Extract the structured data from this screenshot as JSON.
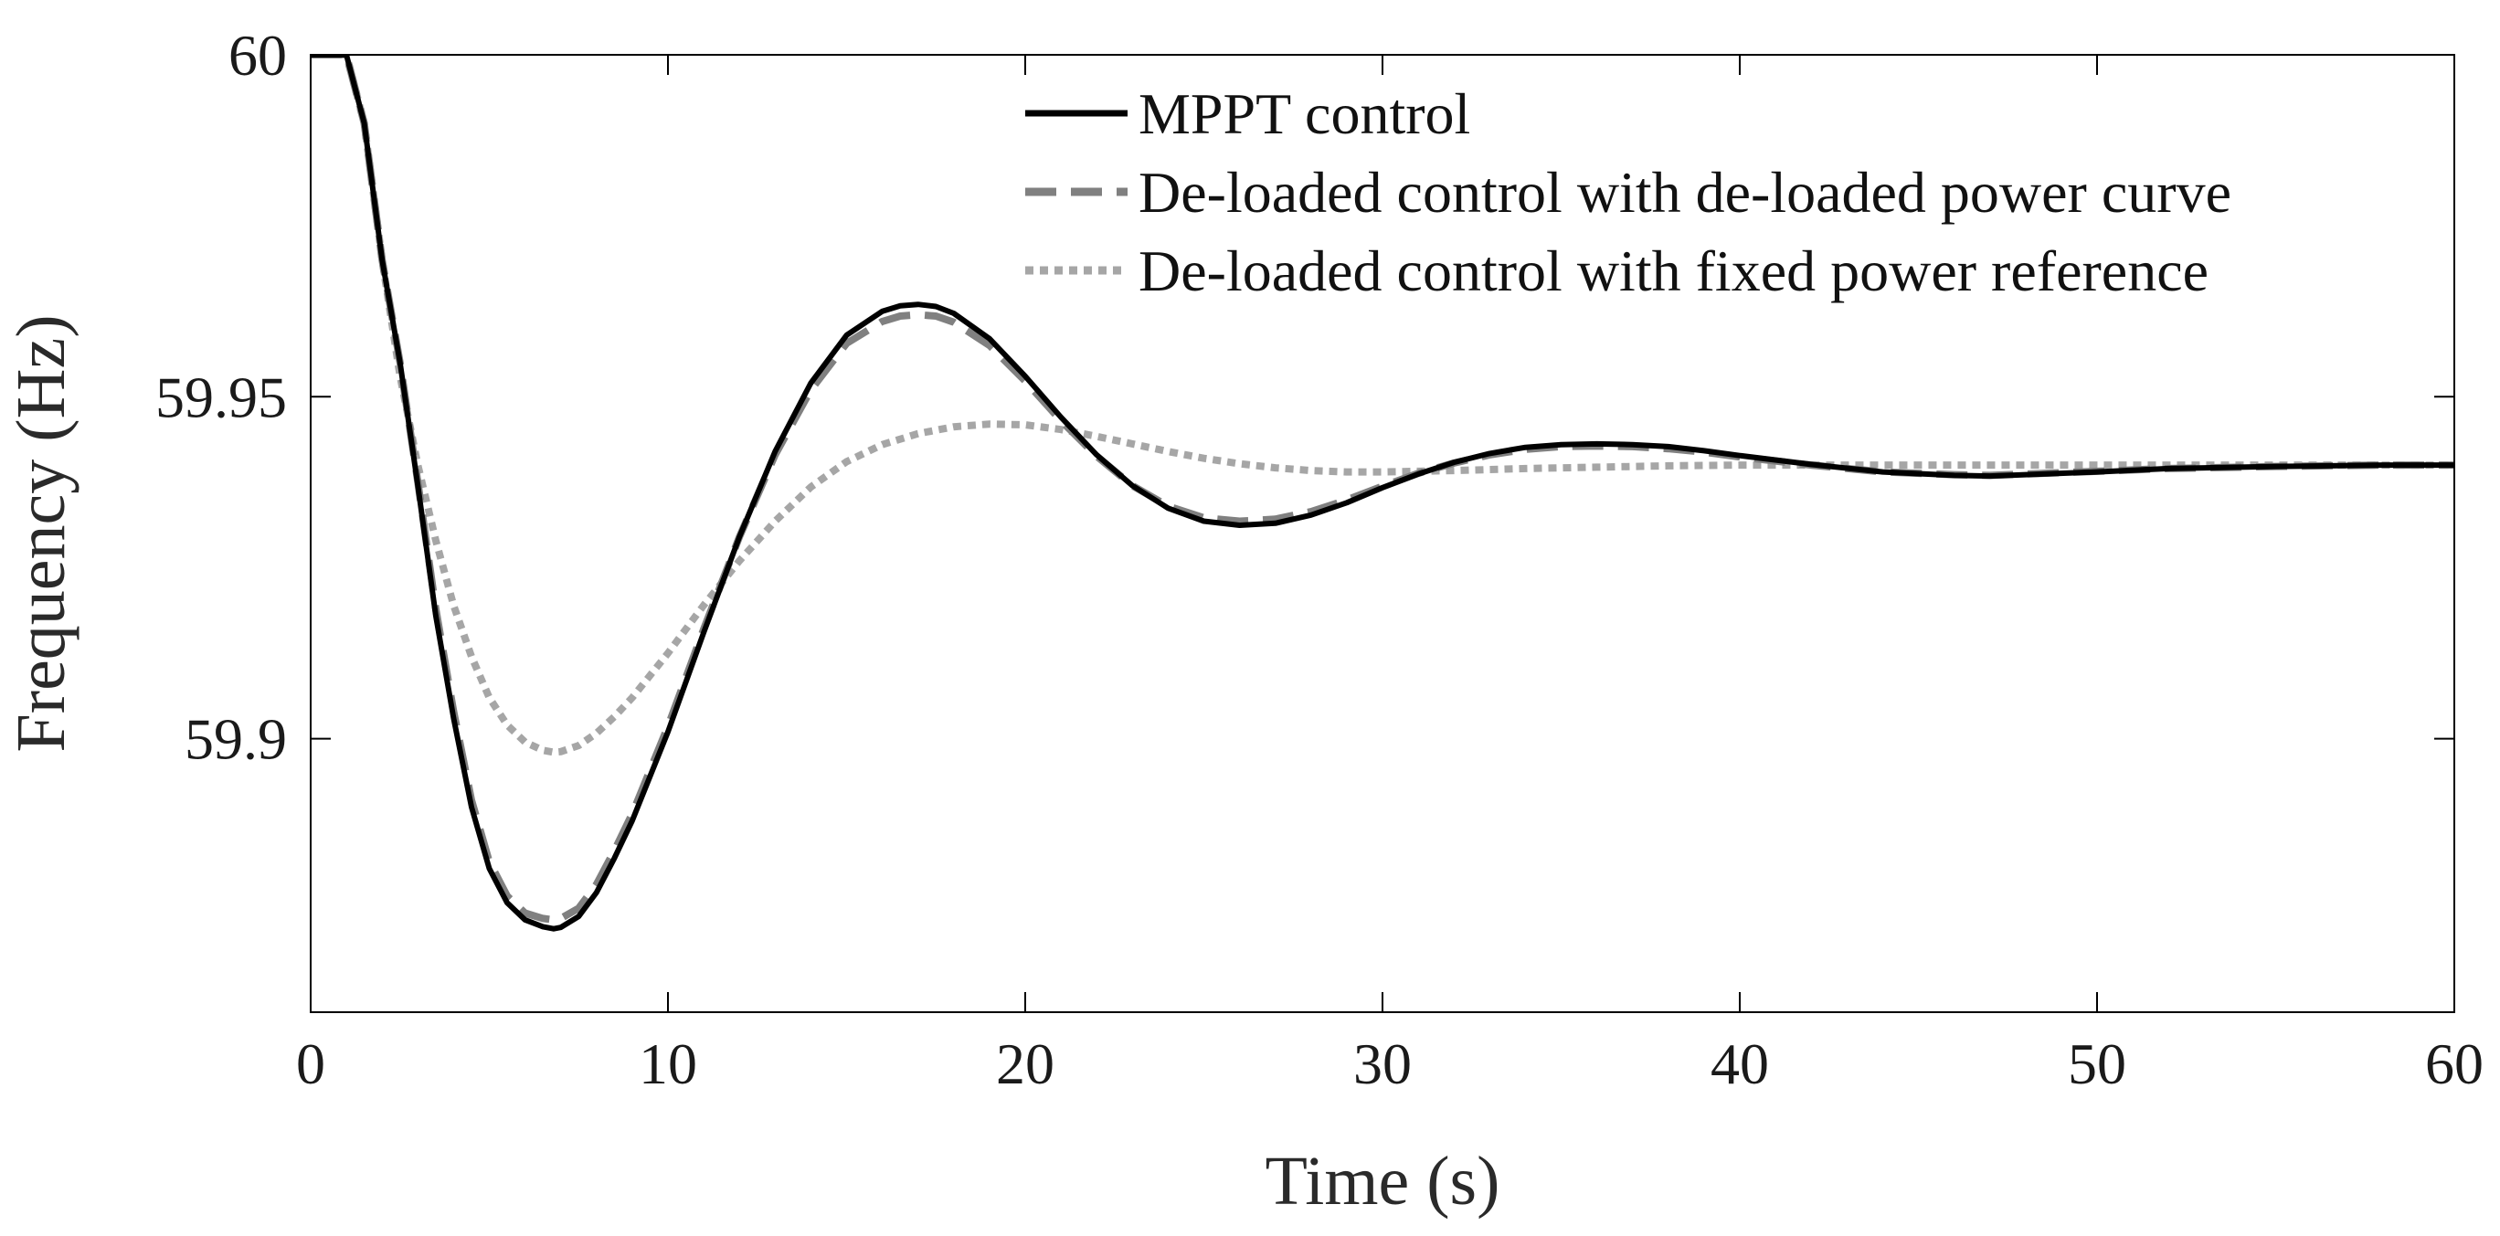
{
  "chart_data": {
    "type": "line",
    "xlabel": "Time (s)",
    "ylabel": "Frequency (Hz)",
    "xlim": [
      0,
      60
    ],
    "ylim": [
      59.86,
      60
    ],
    "xticks": [
      0,
      10,
      20,
      30,
      40,
      50,
      60
    ],
    "xtick_labels": [
      "0",
      "10",
      "20",
      "30",
      "40",
      "50",
      "60"
    ],
    "yticks": [
      59.9,
      59.95,
      60
    ],
    "ytick_labels": [
      "59.9",
      "59.95",
      "60"
    ],
    "grid": false,
    "legend_position": "top-right",
    "series": [
      {
        "name": "MPPT control",
        "style": "solid",
        "color": "#000000",
        "x": [
          0,
          1,
          1.5,
          2,
          2.5,
          3,
          3.5,
          4,
          4.5,
          5,
          5.5,
          6,
          6.5,
          6.8,
          7,
          7.5,
          8,
          8.5,
          9,
          10,
          11,
          12,
          13,
          14,
          15,
          16,
          16.5,
          17,
          17.5,
          18,
          19,
          20,
          21,
          22,
          23,
          24,
          25,
          26,
          27,
          28,
          29,
          30,
          31,
          32,
          33,
          34,
          35,
          36,
          37,
          38,
          39,
          40,
          42,
          44,
          46,
          47,
          48,
          50,
          52,
          55,
          58,
          60
        ],
        "y": [
          60,
          60,
          59.99,
          59.97,
          59.955,
          59.937,
          59.918,
          59.903,
          59.89,
          59.881,
          59.876,
          59.8735,
          59.8725,
          59.8722,
          59.8724,
          59.874,
          59.8775,
          59.8825,
          59.888,
          59.901,
          59.9155,
          59.9295,
          59.942,
          59.952,
          59.959,
          59.9625,
          59.9633,
          59.9635,
          59.9632,
          59.9622,
          59.9585,
          59.953,
          59.947,
          59.9415,
          59.937,
          59.9337,
          59.9318,
          59.9312,
          59.9315,
          59.9327,
          59.9345,
          59.9367,
          59.9387,
          59.9404,
          59.9417,
          59.9426,
          59.943,
          59.9431,
          59.943,
          59.9427,
          59.9421,
          59.9414,
          59.9401,
          59.939,
          59.9385,
          59.9384,
          59.9386,
          59.939,
          59.9395,
          59.9398,
          59.94,
          59.94
        ]
      },
      {
        "name": "De-loaded control with de-loaded power curve",
        "style": "dashed",
        "color": "#808080",
        "x": [
          0,
          1,
          1.5,
          2,
          2.5,
          3,
          3.5,
          4,
          4.5,
          5,
          5.5,
          6,
          6.5,
          6.8,
          7,
          7.5,
          8,
          8.5,
          9,
          10,
          11,
          12,
          13,
          14,
          15,
          16,
          16.5,
          17,
          17.5,
          18,
          19,
          20,
          21,
          22,
          23,
          24,
          25,
          26,
          27,
          28,
          29,
          30,
          31,
          32,
          33,
          34,
          35,
          36,
          37,
          38,
          39,
          40,
          42,
          44,
          46,
          47,
          48,
          50,
          52,
          55,
          58,
          60
        ],
        "y": [
          60,
          60,
          59.99,
          59.97,
          59.955,
          59.9375,
          59.919,
          59.904,
          59.891,
          59.882,
          59.877,
          59.8745,
          59.8737,
          59.8735,
          59.8737,
          59.8752,
          59.8787,
          59.8836,
          59.889,
          59.9018,
          59.916,
          59.9295,
          59.9415,
          59.951,
          59.9578,
          59.961,
          59.9618,
          59.962,
          59.9618,
          59.9609,
          59.9575,
          59.9523,
          59.9465,
          59.9413,
          59.937,
          59.934,
          59.9323,
          59.9318,
          59.9321,
          59.9332,
          59.9349,
          59.9369,
          59.9388,
          59.9403,
          59.9415,
          59.9423,
          59.9427,
          59.9428,
          59.9427,
          59.9424,
          59.9419,
          59.9412,
          59.94,
          59.939,
          59.9386,
          59.9385,
          59.9387,
          59.9391,
          59.9395,
          59.9398,
          59.94,
          59.94
        ]
      },
      {
        "name": "De-loaded control with fixed power reference",
        "style": "dotted",
        "color": "#a6a6a6",
        "x": [
          0,
          1,
          1.5,
          2,
          2.5,
          3,
          3.5,
          4,
          4.5,
          5,
          5.5,
          6,
          6.5,
          6.8,
          7,
          7.5,
          8,
          8.5,
          9,
          10,
          11,
          12,
          13,
          14,
          15,
          16,
          17,
          18,
          19,
          20,
          21,
          22,
          23,
          24,
          25,
          26,
          27,
          28,
          29,
          30,
          32,
          34,
          36,
          38,
          40,
          45,
          50,
          55,
          60
        ],
        "y": [
          60,
          60,
          59.99,
          59.97,
          59.953,
          59.94,
          59.929,
          59.9195,
          59.912,
          59.906,
          59.902,
          59.8995,
          59.8983,
          59.898,
          59.8981,
          59.899,
          59.9008,
          59.9032,
          59.906,
          59.9125,
          59.9195,
          59.926,
          59.9318,
          59.9368,
          59.9405,
          59.943,
          59.9446,
          59.9456,
          59.946,
          59.9459,
          59.9452,
          59.9442,
          59.9431,
          59.942,
          59.941,
          59.9402,
          59.9396,
          59.9392,
          59.939,
          59.939,
          59.9392,
          59.9395,
          59.9397,
          59.9399,
          59.94,
          59.94,
          59.94,
          59.94,
          59.94
        ]
      }
    ]
  }
}
